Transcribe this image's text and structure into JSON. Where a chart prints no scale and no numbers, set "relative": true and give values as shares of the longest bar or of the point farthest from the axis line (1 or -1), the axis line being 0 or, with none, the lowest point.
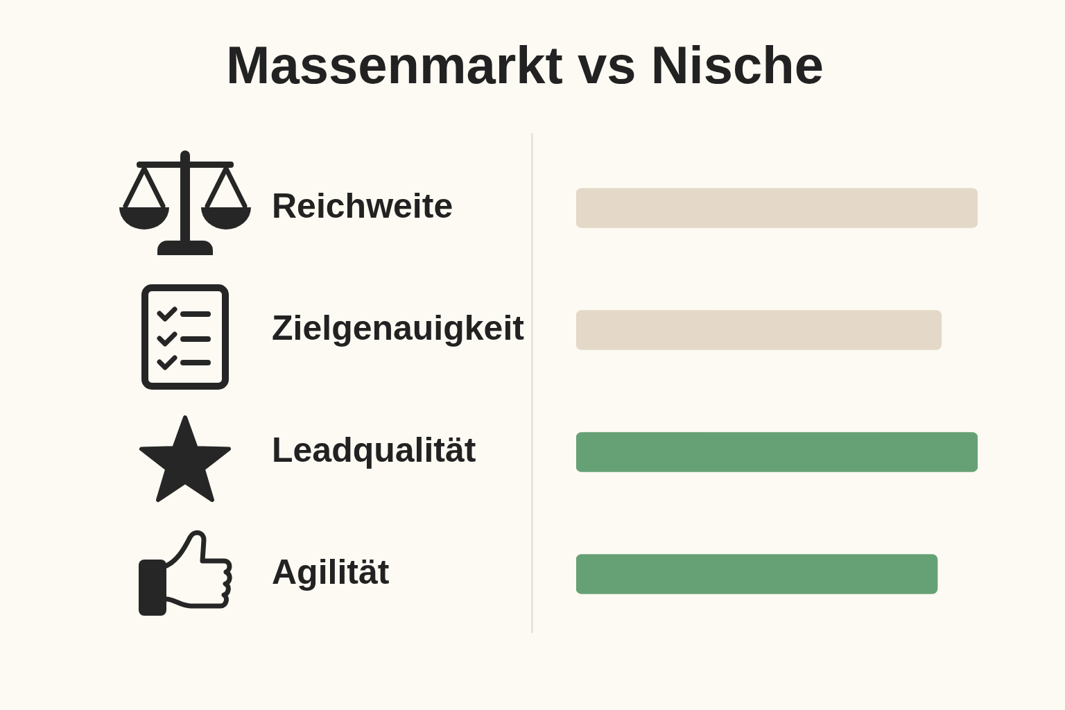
{
  "chart_data": {
    "type": "bar",
    "title": "Massenmarkt vs Nische",
    "orientation": "horizontal",
    "relative": true,
    "categories": [
      "Reichweite",
      "Zielgenauigkeit",
      "Leadqualität",
      "Agilität"
    ],
    "values": [
      1,
      0.91,
      1,
      0.9
    ],
    "colors": [
      "#e4d9c8",
      "#e4d9c8",
      "#66a175",
      "#66a175"
    ]
  }
}
